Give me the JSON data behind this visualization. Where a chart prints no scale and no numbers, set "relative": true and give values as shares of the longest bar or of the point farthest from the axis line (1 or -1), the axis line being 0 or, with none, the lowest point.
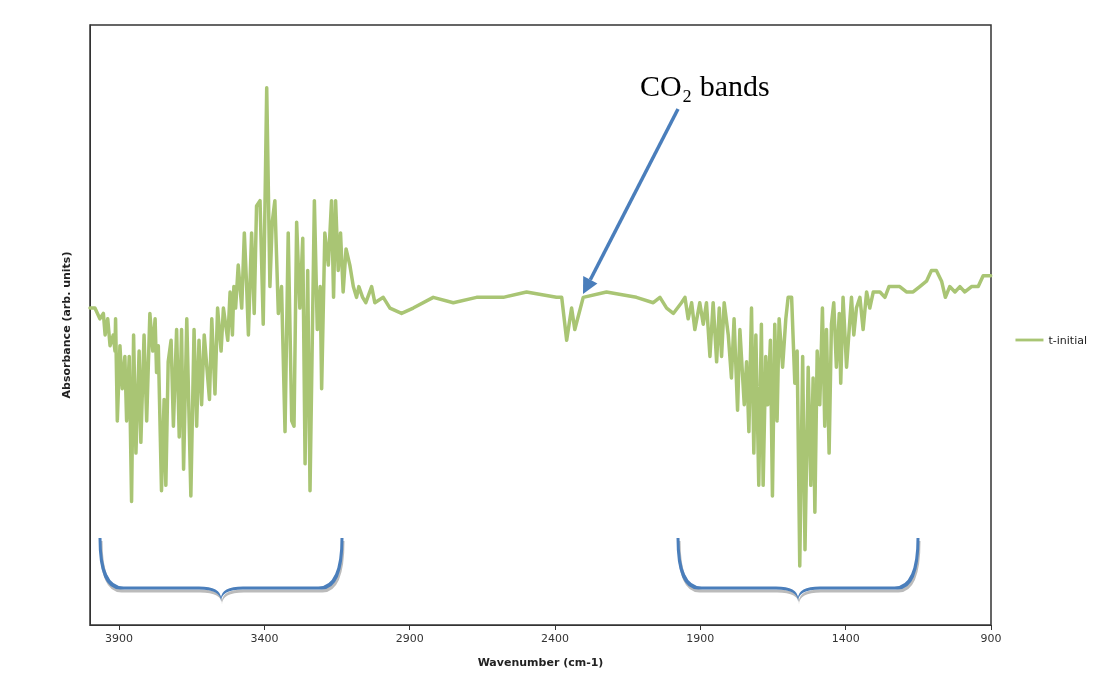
{
  "chart_data": {
    "type": "line",
    "xlabel": "Wavenumber (cm-1)",
    "ylabel": "Absorbance (arb. units)",
    "relative": true,
    "xlim": [
      4000,
      900
    ],
    "xticks": [
      3900,
      3400,
      2900,
      2400,
      1900,
      1400,
      900
    ],
    "grid": false,
    "legend": "right",
    "marker": "none",
    "line_style": "solid",
    "annotations": [
      "CO₂ bands"
    ],
    "series": [
      {
        "name": "t-initial",
        "color": "#a9c574",
        "x": [
          4000,
          3983,
          3966,
          3954,
          3948,
          3939,
          3931,
          3920,
          3914,
          3912,
          3906,
          3897,
          3889,
          3880,
          3874,
          3865,
          3857,
          3850,
          3842,
          3831,
          3825,
          3814,
          3805,
          3794,
          3784,
          3776,
          3771,
          3765,
          3754,
          3745,
          3739,
          3731,
          3721,
          3713,
          3702,
          3693,
          3685,
          3678,
          3667,
          3653,
          3642,
          3633,
          3625,
          3616,
          3607,
          3589,
          3581,
          3570,
          3561,
          3549,
          3541,
          3526,
          3518,
          3510,
          3505,
          3499,
          3490,
          3478,
          3469,
          3461,
          3455,
          3444,
          3435,
          3427,
          3415,
          3404,
          3392,
          3381,
          3373,
          3364,
          3352,
          3341,
          3329,
          3318,
          3306,
          3298,
          3289,
          3278,
          3268,
          3260,
          3251,
          3243,
          3228,
          3218,
          3208,
          3203,
          3192,
          3180,
          3169,
          3162,
          3155,
          3146,
          3138,
          3129,
          3119,
          3106,
          3094,
          3083,
          3075,
          3062,
          3051,
          3031,
          3020,
          2991,
          2968,
          2928,
          2888,
          2819,
          2750,
          2670,
          2578,
          2498,
          2395,
          2377,
          2360,
          2343,
          2332,
          2303,
          2223,
          2120,
          2062,
          2039,
          2016,
          1993,
          1965,
          1953,
          1942,
          1930,
          1919,
          1902,
          1890,
          1879,
          1867,
          1856,
          1844,
          1835,
          1827,
          1818,
          1804,
          1793,
          1784,
          1772,
          1764,
          1749,
          1741,
          1733,
          1724,
          1716,
          1709,
          1699,
          1690,
          1684,
          1675,
          1668,
          1659,
          1652,
          1644,
          1636,
          1629,
          1617,
          1606,
          1598,
          1586,
          1575,
          1567,
          1558,
          1548,
          1540,
          1529,
          1520,
          1512,
          1506,
          1498,
          1489,
          1480,
          1472,
          1466,
          1457,
          1449,
          1441,
          1432,
          1422,
          1417,
          1409,
          1397,
          1388,
          1380,
          1372,
          1363,
          1351,
          1340,
          1328,
          1317,
          1305,
          1282,
          1265,
          1251,
          1237,
          1214,
          1191,
          1168,
          1145,
          1122,
          1105,
          1088,
          1070,
          1057,
          1042,
          1024,
          1007,
          990,
          967,
          944,
          927,
          910,
          901
        ],
        "values": [
          0.59,
          0.59,
          0.57,
          0.58,
          0.54,
          0.57,
          0.52,
          0.54,
          0.51,
          0.57,
          0.38,
          0.52,
          0.44,
          0.5,
          0.38,
          0.5,
          0.23,
          0.54,
          0.32,
          0.51,
          0.34,
          0.54,
          0.38,
          0.58,
          0.51,
          0.57,
          0.47,
          0.52,
          0.25,
          0.42,
          0.26,
          0.49,
          0.53,
          0.37,
          0.55,
          0.35,
          0.55,
          0.29,
          0.57,
          0.24,
          0.55,
          0.37,
          0.53,
          0.41,
          0.54,
          0.42,
          0.57,
          0.43,
          0.59,
          0.51,
          0.59,
          0.53,
          0.62,
          0.54,
          0.63,
          0.59,
          0.67,
          0.59,
          0.73,
          0.63,
          0.54,
          0.73,
          0.58,
          0.78,
          0.79,
          0.56,
          1,
          0.63,
          0.75,
          0.79,
          0.58,
          0.63,
          0.36,
          0.73,
          0.38,
          0.37,
          0.75,
          0.59,
          0.72,
          0.3,
          0.66,
          0.25,
          0.79,
          0.55,
          0.63,
          0.44,
          0.73,
          0.67,
          0.79,
          0.61,
          0.79,
          0.66,
          0.73,
          0.62,
          0.7,
          0.67,
          0.63,
          0.61,
          0.63,
          0.61,
          0.6,
          0.63,
          0.6,
          0.61,
          0.59,
          0.58,
          0.59,
          0.61,
          0.6,
          0.61,
          0.61,
          0.62,
          0.61,
          0.61,
          0.53,
          0.59,
          0.55,
          0.61,
          0.62,
          0.61,
          0.6,
          0.61,
          0.59,
          0.58,
          0.6,
          0.61,
          0.57,
          0.6,
          0.55,
          0.6,
          0.56,
          0.6,
          0.5,
          0.6,
          0.49,
          0.59,
          0.5,
          0.6,
          0.54,
          0.46,
          0.57,
          0.4,
          0.55,
          0.41,
          0.49,
          0.36,
          0.59,
          0.32,
          0.54,
          0.26,
          0.56,
          0.26,
          0.5,
          0.41,
          0.53,
          0.24,
          0.56,
          0.38,
          0.57,
          0.48,
          0.57,
          0.61,
          0.61,
          0.45,
          0.51,
          0.11,
          0.5,
          0.14,
          0.48,
          0.26,
          0.46,
          0.21,
          0.51,
          0.41,
          0.59,
          0.37,
          0.55,
          0.32,
          0.56,
          0.6,
          0.48,
          0.58,
          0.45,
          0.61,
          0.48,
          0.55,
          0.61,
          0.54,
          0.59,
          0.61,
          0.55,
          0.62,
          0.59,
          0.62,
          0.62,
          0.61,
          0.63,
          0.63,
          0.63,
          0.62,
          0.62,
          0.63,
          0.64,
          0.66,
          0.66,
          0.64,
          0.61,
          0.63,
          0.62,
          0.63,
          0.62,
          0.63,
          0.63,
          0.65,
          0.65,
          0.65
        ]
      }
    ]
  }
}
